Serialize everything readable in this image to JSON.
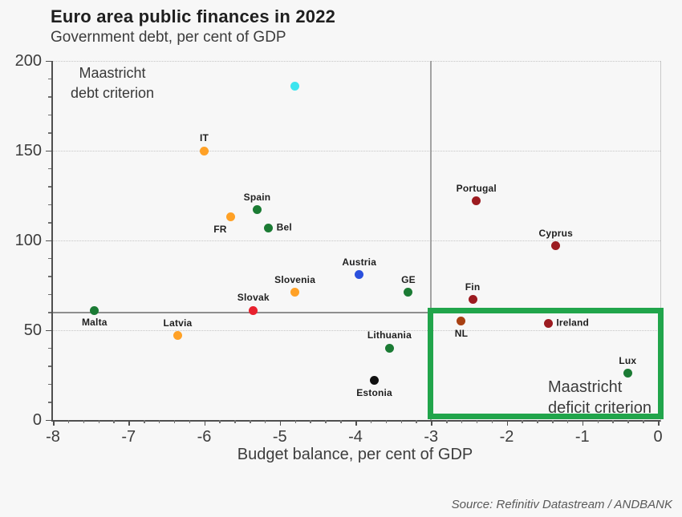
{
  "header": {
    "title": "Euro area public finances in 2022",
    "subtitle": "Government debt, per cent of GDP"
  },
  "annotations": {
    "debt_criterion": [
      "Maastricht",
      "debt criterion"
    ],
    "deficit_criterion": [
      "Maastricht",
      "deficit criterion"
    ]
  },
  "source": "Source: Refinitiv Datastream / ANDBANK",
  "chart_data": {
    "type": "scatter",
    "title": "Euro area public finances in 2022",
    "subtitle": "Government debt, per cent of GDP",
    "xlabel": "Budget balance, per cent of GDP",
    "ylabel": "Government debt, per cent of GDP",
    "xlim": [
      -8,
      0
    ],
    "ylim": [
      0,
      200
    ],
    "x_ticks": [
      -8,
      -7,
      -6,
      -5,
      -4,
      -3,
      -2,
      -1,
      0
    ],
    "y_ticks": [
      0,
      50,
      100,
      150,
      200
    ],
    "x_minor_step": 0.2,
    "y_minor_step": 10,
    "grid_y_values": [
      50,
      100,
      150,
      200
    ],
    "grid": "horizontal-dotted",
    "legend": "none",
    "reference_lines": {
      "debt_criterion_y": 60,
      "deficit_criterion_x": -3
    },
    "highlight_box": {
      "x_range": [
        -3,
        0
      ],
      "y_range": [
        0,
        60
      ],
      "border_color": "#21A54B",
      "meaning": "Maastricht deficit criterion"
    },
    "points": [
      {
        "label": "",
        "x": -4.8,
        "y": 186,
        "color": "#3BE5EF",
        "label_pos": "none"
      },
      {
        "label": "IT",
        "x": -6.0,
        "y": 150,
        "color": "#FFA126",
        "label_pos": "top"
      },
      {
        "label": "FR",
        "x": -5.65,
        "y": 113,
        "color": "#FFA126",
        "label_pos": "bottom-left"
      },
      {
        "label": "Spain",
        "x": -5.3,
        "y": 117,
        "color": "#1B7B34",
        "label_pos": "top"
      },
      {
        "label": "Bel",
        "x": -5.15,
        "y": 107,
        "color": "#1B7B34",
        "label_pos": "right"
      },
      {
        "label": "Slovak",
        "x": -5.35,
        "y": 61,
        "color": "#E8212E",
        "label_pos": "top"
      },
      {
        "label": "Slovenia",
        "x": -4.8,
        "y": 71,
        "color": "#FFA126",
        "label_pos": "top"
      },
      {
        "label": "Austria",
        "x": -3.95,
        "y": 81,
        "color": "#2B50DD",
        "label_pos": "top"
      },
      {
        "label": "GE",
        "x": -3.3,
        "y": 71,
        "color": "#1B7B34",
        "label_pos": "top"
      },
      {
        "label": "Lithuania",
        "x": -3.55,
        "y": 40,
        "color": "#1B7B34",
        "label_pos": "top"
      },
      {
        "label": "Estonia",
        "x": -3.75,
        "y": 22,
        "color": "#111111",
        "label_pos": "bottom"
      },
      {
        "label": "Malta",
        "x": -7.45,
        "y": 61,
        "color": "#1B7B34",
        "label_pos": "bottom"
      },
      {
        "label": "Latvia",
        "x": -6.35,
        "y": 47,
        "color": "#FFA126",
        "label_pos": "top"
      },
      {
        "label": "Portugal",
        "x": -2.4,
        "y": 122,
        "color": "#9C1B20",
        "label_pos": "top"
      },
      {
        "label": "Cyprus",
        "x": -1.35,
        "y": 97,
        "color": "#9C1B20",
        "label_pos": "top"
      },
      {
        "label": "Fin",
        "x": -2.45,
        "y": 67,
        "color": "#9C1B20",
        "label_pos": "top"
      },
      {
        "label": "NL",
        "x": -2.6,
        "y": 55,
        "color": "#A84012",
        "label_pos": "bottom"
      },
      {
        "label": "Ireland",
        "x": -1.45,
        "y": 54,
        "color": "#9C1B20",
        "label_pos": "right"
      },
      {
        "label": "Lux",
        "x": -0.4,
        "y": 26,
        "color": "#1B7B34",
        "label_pos": "top"
      }
    ]
  }
}
